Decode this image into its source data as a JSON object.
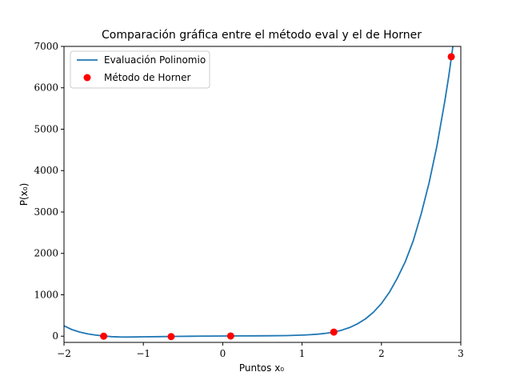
{
  "chart_data": {
    "type": "line",
    "title": "Comparación gráfica entre el método eval y el de Horner",
    "xlabel": "Puntos x₀",
    "ylabel": "P(x₀)",
    "xlim": [
      -2,
      3
    ],
    "ylim": [
      -150,
      7000
    ],
    "xticks": [
      -2,
      -1,
      0,
      1,
      2,
      3
    ],
    "yticks": [
      0,
      1000,
      2000,
      3000,
      4000,
      5000,
      6000,
      7000
    ],
    "xtick_labels": [
      "−2",
      "−1",
      "0",
      "1",
      "2",
      "3"
    ],
    "ytick_labels": [
      "0",
      "1000",
      "2000",
      "3000",
      "4000",
      "5000",
      "6000",
      "7000"
    ],
    "grid": false,
    "legend_position": "top-left",
    "series": [
      {
        "name": "Evaluación Polinomio",
        "kind": "line",
        "color": "#1f77b4",
        "x": [
          -2.0,
          -1.9,
          -1.8,
          -1.7,
          -1.6,
          -1.5,
          -1.4,
          -1.3,
          -1.2,
          -1.1,
          -1.0,
          -0.8,
          -0.6,
          -0.4,
          -0.2,
          0.0,
          0.2,
          0.4,
          0.6,
          0.8,
          1.0,
          1.1,
          1.2,
          1.3,
          1.4,
          1.5,
          1.6,
          1.7,
          1.8,
          1.9,
          2.0,
          2.1,
          2.2,
          2.3,
          2.4,
          2.5,
          2.6,
          2.7,
          2.8,
          2.85,
          2.9
        ],
        "y": [
          250,
          160,
          100,
          55,
          25,
          5,
          -10,
          -18,
          -20,
          -18,
          -15,
          -10,
          -6,
          -2,
          2,
          4,
          6,
          8,
          10,
          15,
          25,
          35,
          50,
          70,
          100,
          145,
          210,
          300,
          420,
          580,
          790,
          1060,
          1400,
          1800,
          2300,
          2950,
          3700,
          4600,
          5700,
          6300,
          7000
        ]
      },
      {
        "name": "Método de Horner",
        "kind": "scatter",
        "color": "#ff0000",
        "x": [
          -1.5,
          -0.65,
          0.1,
          1.4,
          2.88
        ],
        "y": [
          0,
          -10,
          5,
          100,
          6750
        ]
      }
    ]
  }
}
